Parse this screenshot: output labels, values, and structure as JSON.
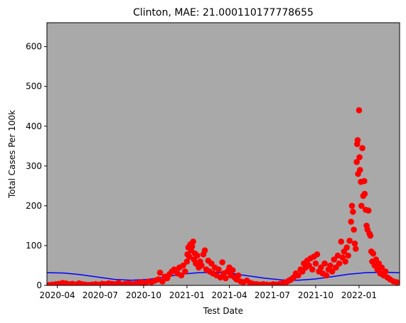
{
  "chart_data": {
    "type": "scatter",
    "title": "Clinton, MAE: 21.000110177778655",
    "xlabel": "Test Date",
    "ylabel": "Total Cases Per 100k",
    "xlim": [
      "2020-03-10",
      "2022-03-28"
    ],
    "ylim": [
      0,
      660
    ],
    "x_ticks": [
      "2020-04",
      "2020-07",
      "2020-10",
      "2021-01",
      "2021-04",
      "2021-07",
      "2021-10",
      "2022-01"
    ],
    "y_ticks": [
      0,
      100,
      200,
      300,
      400,
      500,
      600
    ],
    "background_color": "#a9a9a9",
    "grid": false,
    "series": [
      {
        "kind": "scatter",
        "color": "#ff0000",
        "points": [
          [
            "2020-03-15",
            1
          ],
          [
            "2020-03-22",
            2
          ],
          [
            "2020-03-29",
            3
          ],
          [
            "2020-04-05",
            4
          ],
          [
            "2020-04-12",
            6
          ],
          [
            "2020-04-19",
            5
          ],
          [
            "2020-04-26",
            3
          ],
          [
            "2020-05-03",
            4
          ],
          [
            "2020-05-10",
            2
          ],
          [
            "2020-05-17",
            5
          ],
          [
            "2020-05-24",
            3
          ],
          [
            "2020-05-31",
            2
          ],
          [
            "2020-06-07",
            1
          ],
          [
            "2020-06-14",
            2
          ],
          [
            "2020-06-21",
            3
          ],
          [
            "2020-06-28",
            2
          ],
          [
            "2020-07-05",
            4
          ],
          [
            "2020-07-12",
            3
          ],
          [
            "2020-07-19",
            5
          ],
          [
            "2020-07-26",
            4
          ],
          [
            "2020-08-02",
            3
          ],
          [
            "2020-08-09",
            6
          ],
          [
            "2020-08-16",
            2
          ],
          [
            "2020-08-23",
            4
          ],
          [
            "2020-08-30",
            5
          ],
          [
            "2020-09-06",
            3
          ],
          [
            "2020-09-13",
            4
          ],
          [
            "2020-09-20",
            6
          ],
          [
            "2020-09-27",
            8
          ],
          [
            "2020-10-04",
            5
          ],
          [
            "2020-10-11",
            10
          ],
          [
            "2020-10-18",
            8
          ],
          [
            "2020-10-25",
            12
          ],
          [
            "2020-11-01",
            15
          ],
          [
            "2020-11-05",
            32
          ],
          [
            "2020-11-10",
            10
          ],
          [
            "2020-11-15",
            22
          ],
          [
            "2020-11-20",
            18
          ],
          [
            "2020-11-25",
            28
          ],
          [
            "2020-11-30",
            35
          ],
          [
            "2020-12-05",
            40
          ],
          [
            "2020-12-08",
            38
          ],
          [
            "2020-12-12",
            30
          ],
          [
            "2020-12-16",
            45
          ],
          [
            "2020-12-20",
            25
          ],
          [
            "2020-12-24",
            50
          ],
          [
            "2020-12-28",
            35
          ],
          [
            "2021-01-01",
            60
          ],
          [
            "2021-01-02",
            78
          ],
          [
            "2021-01-04",
            95
          ],
          [
            "2021-01-06",
            72
          ],
          [
            "2021-01-08",
            103
          ],
          [
            "2021-01-10",
            88
          ],
          [
            "2021-01-12",
            98
          ],
          [
            "2021-01-14",
            110
          ],
          [
            "2021-01-16",
            65
          ],
          [
            "2021-01-18",
            80
          ],
          [
            "2021-01-20",
            55
          ],
          [
            "2021-01-23",
            75
          ],
          [
            "2021-01-26",
            45
          ],
          [
            "2021-01-29",
            60
          ],
          [
            "2021-02-01",
            50
          ],
          [
            "2021-02-05",
            78
          ],
          [
            "2021-02-08",
            88
          ],
          [
            "2021-02-11",
            40
          ],
          [
            "2021-02-15",
            62
          ],
          [
            "2021-02-18",
            35
          ],
          [
            "2021-02-22",
            55
          ],
          [
            "2021-02-25",
            30
          ],
          [
            "2021-03-01",
            45
          ],
          [
            "2021-03-05",
            25
          ],
          [
            "2021-03-09",
            40
          ],
          [
            "2021-03-13",
            20
          ],
          [
            "2021-03-17",
            58
          ],
          [
            "2021-03-20",
            30
          ],
          [
            "2021-03-24",
            18
          ],
          [
            "2021-03-28",
            35
          ],
          [
            "2021-04-01",
            45
          ],
          [
            "2021-04-04",
            25
          ],
          [
            "2021-04-08",
            38
          ],
          [
            "2021-04-12",
            20
          ],
          [
            "2021-04-16",
            15
          ],
          [
            "2021-04-20",
            25
          ],
          [
            "2021-04-25",
            10
          ],
          [
            "2021-05-01",
            8
          ],
          [
            "2021-05-08",
            12
          ],
          [
            "2021-05-15",
            6
          ],
          [
            "2021-05-22",
            4
          ],
          [
            "2021-05-29",
            3
          ],
          [
            "2021-06-05",
            2
          ],
          [
            "2021-06-12",
            3
          ],
          [
            "2021-06-19",
            2
          ],
          [
            "2021-06-26",
            1
          ],
          [
            "2021-07-03",
            3
          ],
          [
            "2021-07-10",
            2
          ],
          [
            "2021-07-17",
            4
          ],
          [
            "2021-07-24",
            6
          ],
          [
            "2021-07-31",
            8
          ],
          [
            "2021-08-05",
            12
          ],
          [
            "2021-08-10",
            15
          ],
          [
            "2021-08-15",
            20
          ],
          [
            "2021-08-20",
            30
          ],
          [
            "2021-08-25",
            25
          ],
          [
            "2021-08-30",
            40
          ],
          [
            "2021-09-03",
            35
          ],
          [
            "2021-09-06",
            55
          ],
          [
            "2021-09-10",
            45
          ],
          [
            "2021-09-13",
            62
          ],
          [
            "2021-09-17",
            50
          ],
          [
            "2021-09-20",
            68
          ],
          [
            "2021-09-24",
            40
          ],
          [
            "2021-09-27",
            72
          ],
          [
            "2021-10-01",
            55
          ],
          [
            "2021-10-04",
            78
          ],
          [
            "2021-10-08",
            35
          ],
          [
            "2021-10-12",
            45
          ],
          [
            "2021-10-16",
            30
          ],
          [
            "2021-10-20",
            55
          ],
          [
            "2021-10-24",
            25
          ],
          [
            "2021-10-28",
            40
          ],
          [
            "2021-11-01",
            50
          ],
          [
            "2021-11-05",
            35
          ],
          [
            "2021-11-09",
            65
          ],
          [
            "2021-11-13",
            45
          ],
          [
            "2021-11-17",
            75
          ],
          [
            "2021-11-20",
            55
          ],
          [
            "2021-11-24",
            110
          ],
          [
            "2021-11-27",
            70
          ],
          [
            "2021-11-30",
            85
          ],
          [
            "2021-12-03",
            60
          ],
          [
            "2021-12-06",
            95
          ],
          [
            "2021-12-09",
            75
          ],
          [
            "2021-12-12",
            112
          ],
          [
            "2021-12-15",
            160
          ],
          [
            "2021-12-17",
            200
          ],
          [
            "2021-12-19",
            185
          ],
          [
            "2021-12-21",
            140
          ],
          [
            "2021-12-23",
            105
          ],
          [
            "2021-12-25",
            92
          ],
          [
            "2021-12-27",
            310
          ],
          [
            "2021-12-28",
            355
          ],
          [
            "2021-12-29",
            365
          ],
          [
            "2021-12-30",
            280
          ],
          [
            "2022-01-01",
            440
          ],
          [
            "2022-01-02",
            322
          ],
          [
            "2022-01-03",
            290
          ],
          [
            "2022-01-05",
            260
          ],
          [
            "2022-01-06",
            200
          ],
          [
            "2022-01-08",
            345
          ],
          [
            "2022-01-10",
            225
          ],
          [
            "2022-01-12",
            262
          ],
          [
            "2022-01-13",
            230
          ],
          [
            "2022-01-15",
            190
          ],
          [
            "2022-01-17",
            150
          ],
          [
            "2022-01-19",
            140
          ],
          [
            "2022-01-21",
            188
          ],
          [
            "2022-01-23",
            130
          ],
          [
            "2022-01-25",
            125
          ],
          [
            "2022-01-27",
            85
          ],
          [
            "2022-01-29",
            60
          ],
          [
            "2022-01-31",
            80
          ],
          [
            "2022-02-03",
            50
          ],
          [
            "2022-02-06",
            65
          ],
          [
            "2022-02-09",
            40
          ],
          [
            "2022-02-12",
            55
          ],
          [
            "2022-02-15",
            30
          ],
          [
            "2022-02-18",
            45
          ],
          [
            "2022-02-22",
            25
          ],
          [
            "2022-02-26",
            35
          ],
          [
            "2022-03-02",
            20
          ],
          [
            "2022-03-08",
            15
          ],
          [
            "2022-03-15",
            10
          ],
          [
            "2022-03-22",
            8
          ]
        ]
      },
      {
        "kind": "line",
        "color": "#0000ff",
        "points": [
          [
            "2020-03-10",
            32
          ],
          [
            "2020-04-15",
            31
          ],
          [
            "2020-05-20",
            27
          ],
          [
            "2020-06-25",
            21
          ],
          [
            "2020-08-01",
            15
          ],
          [
            "2020-09-05",
            13
          ],
          [
            "2020-10-10",
            15
          ],
          [
            "2020-11-15",
            21
          ],
          [
            "2020-12-20",
            28
          ],
          [
            "2021-01-25",
            32
          ],
          [
            "2021-03-01",
            33
          ],
          [
            "2021-04-05",
            30
          ],
          [
            "2021-05-10",
            24
          ],
          [
            "2021-06-15",
            18
          ],
          [
            "2021-07-20",
            14
          ],
          [
            "2021-08-25",
            13
          ],
          [
            "2021-09-30",
            16
          ],
          [
            "2021-11-05",
            22
          ],
          [
            "2021-12-10",
            28
          ],
          [
            "2022-01-15",
            32
          ],
          [
            "2022-02-20",
            33
          ],
          [
            "2022-03-28",
            32
          ]
        ]
      }
    ]
  }
}
